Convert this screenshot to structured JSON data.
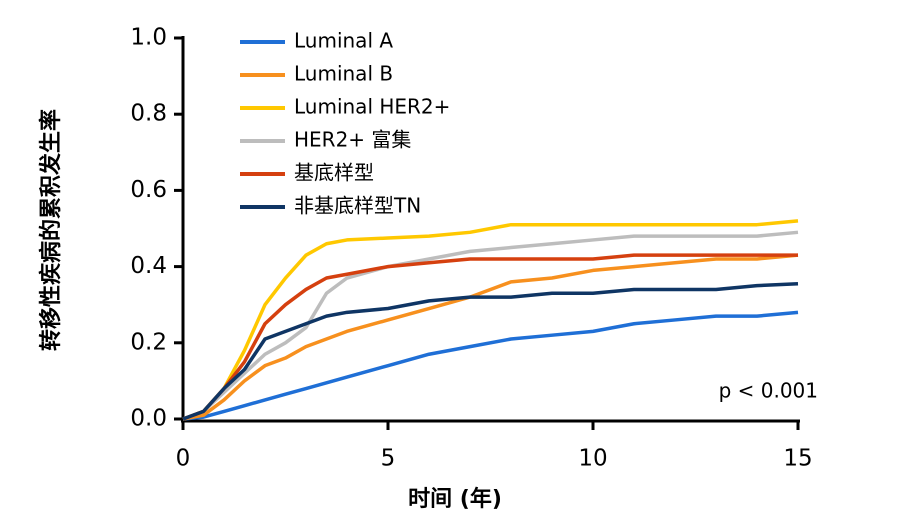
{
  "chart_data": {
    "type": "line",
    "xlabel": "时间 (年)",
    "ylabel": "转移性疾病的累积发生率",
    "annotation": "p < 0.001",
    "x": [
      0,
      0.5,
      1,
      1.5,
      2,
      2.5,
      3,
      3.5,
      4,
      5,
      6,
      7,
      8,
      9,
      10,
      11,
      12,
      13,
      14,
      15
    ],
    "series": [
      {
        "name": "Luminal A",
        "color": "#1f6fd6",
        "values": [
          0,
          0.005,
          0.02,
          0.035,
          0.05,
          0.065,
          0.08,
          0.095,
          0.11,
          0.14,
          0.17,
          0.19,
          0.21,
          0.22,
          0.23,
          0.25,
          0.26,
          0.27,
          0.27,
          0.28
        ]
      },
      {
        "name": "Luminal B",
        "color": "#f7901e",
        "values": [
          0,
          0.01,
          0.05,
          0.1,
          0.14,
          0.16,
          0.19,
          0.21,
          0.23,
          0.26,
          0.29,
          0.32,
          0.36,
          0.37,
          0.39,
          0.4,
          0.41,
          0.42,
          0.42,
          0.43
        ]
      },
      {
        "name": "Luminal HER2+",
        "color": "#ffc800",
        "values": [
          0,
          0.02,
          0.08,
          0.18,
          0.3,
          0.37,
          0.43,
          0.46,
          0.47,
          0.475,
          0.48,
          0.49,
          0.51,
          0.51,
          0.51,
          0.51,
          0.51,
          0.51,
          0.51,
          0.52
        ]
      },
      {
        "name": "HER2+ 富集",
        "color": "#bdbdbd",
        "values": [
          0,
          0.02,
          0.07,
          0.12,
          0.17,
          0.2,
          0.24,
          0.33,
          0.37,
          0.4,
          0.42,
          0.44,
          0.45,
          0.46,
          0.47,
          0.48,
          0.48,
          0.48,
          0.48,
          0.49
        ]
      },
      {
        "name": "基底样型",
        "color": "#d5400f",
        "values": [
          0,
          0.02,
          0.08,
          0.15,
          0.25,
          0.3,
          0.34,
          0.37,
          0.38,
          0.4,
          0.41,
          0.42,
          0.42,
          0.42,
          0.42,
          0.43,
          0.43,
          0.43,
          0.43,
          0.43
        ]
      },
      {
        "name": "非基底样型TN",
        "color": "#0f3564",
        "values": [
          0,
          0.02,
          0.08,
          0.13,
          0.21,
          0.23,
          0.25,
          0.27,
          0.28,
          0.29,
          0.31,
          0.32,
          0.32,
          0.33,
          0.33,
          0.34,
          0.34,
          0.34,
          0.35,
          0.355
        ]
      }
    ],
    "xlim": [
      0,
      15
    ],
    "xticks": [
      0,
      5,
      10,
      15
    ],
    "ylim": [
      0,
      1
    ],
    "yticks": [
      {
        "value": 0,
        "label": "0.0"
      },
      0.2,
      0.4,
      0.6,
      0.8,
      {
        "value": 1,
        "label": "1.0"
      }
    ],
    "legend": "top-left",
    "grid": false
  }
}
